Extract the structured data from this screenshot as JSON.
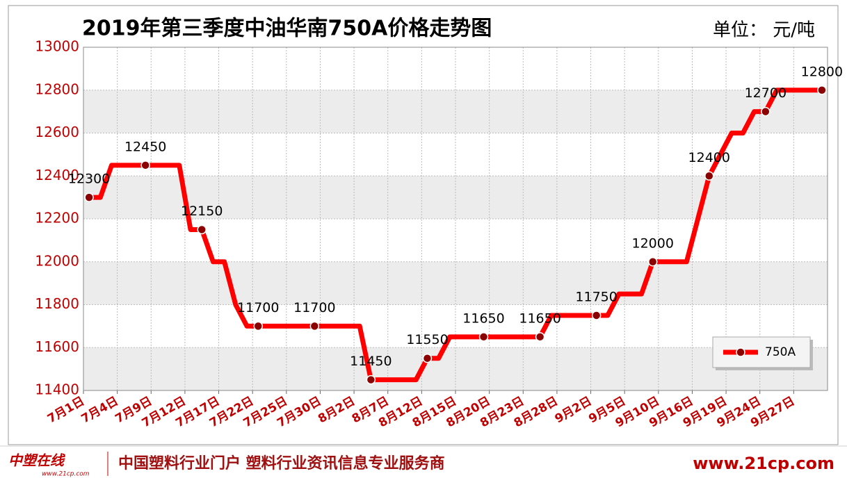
{
  "chart_data": {
    "type": "line",
    "title": "2019年第三季度中油华南750A价格走势图",
    "unit": "单位： 元/吨",
    "categories": [
      "7月1日",
      null,
      null,
      "7月4日",
      null,
      null,
      "7月9日",
      null,
      null,
      "7月12日",
      null,
      null,
      "7月17日",
      null,
      null,
      "7月22日",
      null,
      null,
      "7月25日",
      null,
      null,
      "7月30日",
      null,
      null,
      "8月2日",
      null,
      null,
      "8月7日",
      null,
      null,
      "8月12日",
      null,
      null,
      "8月15日",
      null,
      null,
      "8月20日",
      null,
      null,
      "8月23日",
      null,
      null,
      "8月28日",
      null,
      null,
      "9月2日",
      null,
      null,
      "9月5日",
      null,
      null,
      "9月10日",
      null,
      null,
      "9月16日",
      null,
      null,
      "9月19日",
      null,
      null,
      "9月24日",
      null,
      null,
      "9月27日",
      null,
      null
    ],
    "series": [
      {
        "name": "750A",
        "color": "#ff0000",
        "marker_color": "#8b0000",
        "values": [
          12300,
          12300,
          12450,
          12450,
          12450,
          12450,
          12450,
          12450,
          12450,
          12150,
          12150,
          12000,
          12000,
          11800,
          11700,
          11700,
          11700,
          11700,
          11700,
          11700,
          11700,
          11700,
          11700,
          11700,
          11700,
          11450,
          11450,
          11450,
          11450,
          11450,
          11550,
          11550,
          11650,
          11650,
          11650,
          11650,
          11650,
          11650,
          11650,
          11650,
          11650,
          11750,
          11750,
          11750,
          11750,
          11750,
          11750,
          11850,
          11850,
          11850,
          12000,
          12000,
          12000,
          12000,
          12200,
          12400,
          12500,
          12600,
          12600,
          12700,
          12700,
          12800,
          12800,
          12800,
          12800,
          12800
        ],
        "value_labels": [
          "12300",
          null,
          null,
          null,
          null,
          "12450",
          null,
          null,
          null,
          null,
          "12150",
          null,
          null,
          null,
          null,
          "11700",
          null,
          null,
          null,
          null,
          "11700",
          null,
          null,
          null,
          null,
          "11450",
          null,
          null,
          null,
          null,
          "11550",
          null,
          null,
          null,
          null,
          "11650",
          null,
          null,
          null,
          null,
          "11650",
          null,
          null,
          null,
          null,
          "11750",
          null,
          null,
          null,
          null,
          "12000",
          null,
          null,
          null,
          null,
          "12400",
          null,
          null,
          null,
          null,
          "12700",
          null,
          null,
          null,
          null,
          "12800"
        ]
      }
    ],
    "ylim": [
      11400,
      13000
    ],
    "yticks": [
      11400,
      11600,
      11800,
      12000,
      12200,
      12400,
      12600,
      12800,
      13000
    ],
    "grid": true,
    "legend": "lower right"
  },
  "footer": {
    "logo": "中塑在线",
    "logo_url": "www.21cp.com",
    "slogan": "中国塑料行业门户 塑料行业资讯信息专业服务商",
    "url": "www.21cp.com"
  }
}
